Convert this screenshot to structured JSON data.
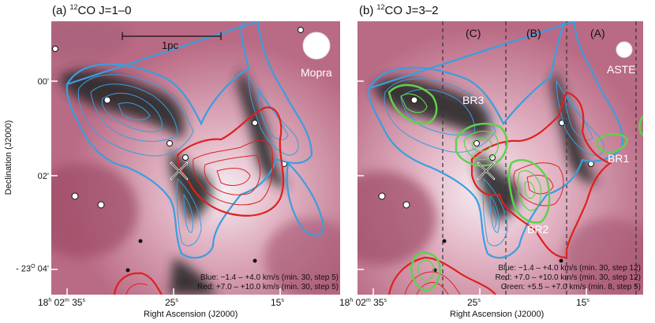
{
  "panel_a": {
    "label": "(a) ",
    "iso": "12",
    "line": "CO J=1–0",
    "scale_label": "1pc",
    "telescope": "Mopra",
    "legend_blue": "Blue: −1.4 – +4.0 km/s (min. 30, step 5)",
    "legend_red": "Red: +7.0 – +10.0 km/s (min. 30, step 5)"
  },
  "panel_b": {
    "label": "(b) ",
    "iso": "12",
    "line": "CO J=3–2",
    "telescope": "ASTE",
    "region_c": "(C)",
    "region_b": "(B)",
    "region_a": "(A)",
    "br1": "BR1",
    "br2": "BR2",
    "br3": "BR3",
    "legend_blue": "Blue: −1.4 – +4.0 km/s (min. 30, step 12)",
    "legend_red": "Red: +7.0 – +10.0 km/s (min. 30, step 12)",
    "legend_green": "Green: +5.5 – +7.0 km/s (min. 8, step 5)"
  },
  "axes": {
    "ylabel": "Declination (J2000)",
    "xlabel": "Right Ascension (J2000)",
    "y_ticks": [
      "00'",
      "02'"
    ],
    "y_tick_bottom": {
      "prefix": "- 23",
      "sup": "O",
      "suffix": " 04'"
    },
    "x_tick_first": {
      "h": "18",
      "hsup": "h",
      "m": " 02",
      "msup": "m",
      "s": " 35",
      "ssup": "s"
    },
    "x_ticks": [
      {
        "v": "25",
        "sup": "s"
      },
      {
        "v": "15",
        "sup": "s"
      }
    ]
  },
  "colors": {
    "blue_contour": "#3a9ee0",
    "red_contour": "#e02020",
    "green_contour": "#5fd24a",
    "nebula_pink": "#d58a9c",
    "dark_lane": "#2a2a2c"
  }
}
